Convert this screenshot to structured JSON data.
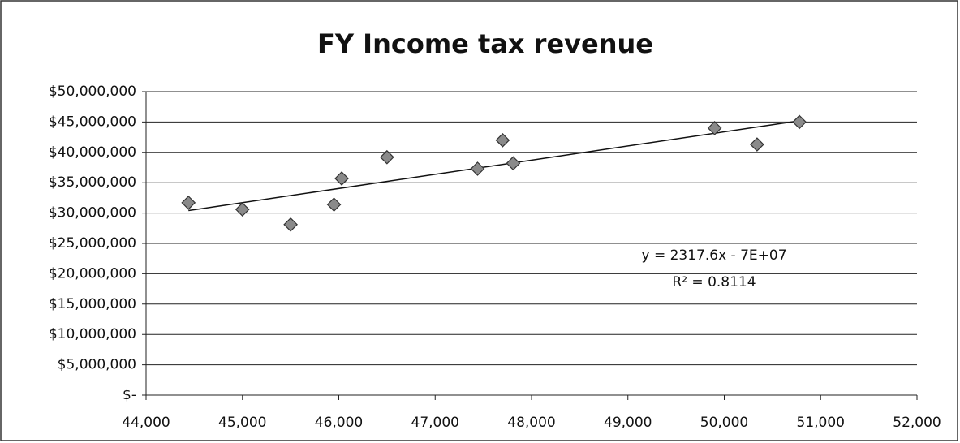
{
  "chart_data": {
    "type": "scatter",
    "title": "FY Income tax revenue",
    "x": [
      44440,
      45000,
      45500,
      45950,
      46030,
      46500,
      47440,
      47700,
      47810,
      49900,
      50340,
      50780
    ],
    "series": [
      {
        "color": "#8a8a8a",
        "values": [
          31700000,
          30600000,
          28100000,
          31400000,
          35700000,
          39200000,
          37300000,
          42000000,
          38200000,
          44000000,
          41300000,
          45000000
        ]
      }
    ],
    "xlim": [
      44000,
      52000
    ],
    "xticks": [
      {
        "value": 44000,
        "label": "44,000"
      },
      {
        "value": 45000,
        "label": "45,000"
      },
      {
        "value": 46000,
        "label": "46,000"
      },
      {
        "value": 47000,
        "label": "47,000"
      },
      {
        "value": 48000,
        "label": "48,000"
      },
      {
        "value": 49000,
        "label": "49,000"
      },
      {
        "value": 50000,
        "label": "50,000"
      },
      {
        "value": 51000,
        "label": "51,000"
      },
      {
        "value": 52000,
        "label": "52,000"
      }
    ],
    "ylim": [
      0,
      50000000
    ],
    "yticks": [
      {
        "value": 0,
        "label": "$-"
      },
      {
        "value": 5000000,
        "label": "$5,000,000"
      },
      {
        "value": 10000000,
        "label": "$10,000,000"
      },
      {
        "value": 15000000,
        "label": "$15,000,000"
      },
      {
        "value": 20000000,
        "label": "$20,000,000"
      },
      {
        "value": 25000000,
        "label": "$25,000,000"
      },
      {
        "value": 30000000,
        "label": "$30,000,000"
      },
      {
        "value": 35000000,
        "label": "$35,000,000"
      },
      {
        "value": 40000000,
        "label": "$40,000,000"
      },
      {
        "value": 45000000,
        "label": "$45,000,000"
      },
      {
        "value": 50000000,
        "label": "$50,000,000"
      }
    ],
    "grid": true,
    "trendline": "linear",
    "annotations": [
      "y = 2317.6x - 7E+07",
      "R² = 0.8114"
    ]
  }
}
